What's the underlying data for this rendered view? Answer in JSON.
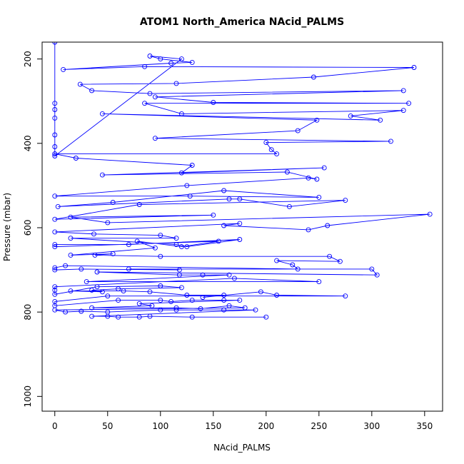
{
  "chart_data": {
    "type": "line",
    "title": "ATOM1 North_America NAcid_PALMS",
    "xlabel": "NAcid_PALMS",
    "ylabel": "Pressure (mbar)",
    "xlim": [
      -12,
      367
    ],
    "ylim": [
      1035,
      160
    ],
    "y_reversed": true,
    "x_ticks": [
      0,
      50,
      100,
      150,
      200,
      250,
      300,
      350
    ],
    "y_ticks": [
      200,
      400,
      600,
      800,
      1000
    ],
    "series_color": "#0000ff",
    "series": [
      {
        "points": [
          [
            0,
            160
          ],
          [
            0,
            305
          ],
          [
            0,
            320
          ],
          [
            0,
            340
          ],
          [
            0,
            380
          ],
          [
            0,
            408
          ],
          [
            0,
            425
          ],
          [
            0,
            430
          ],
          [
            120,
            200
          ],
          [
            90,
            193
          ],
          [
            100,
            200
          ],
          [
            130,
            208
          ],
          [
            110,
            210
          ],
          [
            8,
            225
          ],
          [
            85,
            218
          ],
          [
            340,
            220
          ],
          [
            245,
            243
          ],
          [
            115,
            258
          ],
          [
            24,
            260
          ],
          [
            35,
            275
          ],
          [
            90,
            282
          ],
          [
            330,
            275
          ],
          [
            95,
            290
          ],
          [
            150,
            303
          ],
          [
            335,
            305
          ],
          [
            85,
            305
          ],
          [
            120,
            330
          ],
          [
            330,
            322
          ],
          [
            280,
            335
          ],
          [
            308,
            345
          ],
          [
            45,
            330
          ],
          [
            248,
            345
          ],
          [
            230,
            370
          ],
          [
            95,
            388
          ],
          [
            318,
            395
          ],
          [
            200,
            398
          ],
          [
            205,
            415
          ],
          [
            210,
            425
          ],
          [
            0,
            425
          ],
          [
            20,
            435
          ],
          [
            130,
            452
          ],
          [
            120,
            470
          ],
          [
            255,
            458
          ],
          [
            45,
            475
          ],
          [
            220,
            468
          ],
          [
            248,
            485
          ],
          [
            240,
            482
          ],
          [
            125,
            500
          ],
          [
            0,
            525
          ],
          [
            128,
            525
          ],
          [
            250,
            528
          ],
          [
            160,
            512
          ],
          [
            55,
            540
          ],
          [
            3,
            550
          ],
          [
            165,
            532
          ],
          [
            175,
            532
          ],
          [
            222,
            550
          ],
          [
            275,
            535
          ],
          [
            80,
            545
          ],
          [
            0,
            580
          ],
          [
            150,
            570
          ],
          [
            15,
            575
          ],
          [
            50,
            588
          ],
          [
            355,
            568
          ],
          [
            258,
            595
          ],
          [
            240,
            605
          ],
          [
            160,
            595
          ],
          [
            175,
            590
          ],
          [
            0,
            610
          ],
          [
            37,
            615
          ],
          [
            100,
            618
          ],
          [
            115,
            625
          ],
          [
            15,
            625
          ],
          [
            115,
            640
          ],
          [
            125,
            645
          ],
          [
            175,
            628
          ],
          [
            70,
            640
          ],
          [
            0,
            640
          ],
          [
            0,
            645
          ],
          [
            155,
            632
          ],
          [
            120,
            645
          ],
          [
            78,
            632
          ],
          [
            95,
            648
          ],
          [
            15,
            665
          ],
          [
            55,
            662
          ],
          [
            38,
            665
          ],
          [
            100,
            668
          ],
          [
            260,
            668
          ],
          [
            270,
            680
          ],
          [
            210,
            678
          ],
          [
            225,
            688
          ],
          [
            230,
            698
          ],
          [
            10,
            690
          ],
          [
            0,
            695
          ],
          [
            0,
            700
          ],
          [
            25,
            698
          ],
          [
            118,
            700
          ],
          [
            70,
            698
          ],
          [
            300,
            698
          ],
          [
            305,
            712
          ],
          [
            40,
            705
          ],
          [
            118,
            712
          ],
          [
            140,
            712
          ],
          [
            165,
            712
          ],
          [
            30,
            728
          ],
          [
            250,
            728
          ],
          [
            170,
            720
          ],
          [
            0,
            740
          ],
          [
            0,
            748
          ],
          [
            0,
            758
          ],
          [
            40,
            740
          ],
          [
            100,
            738
          ],
          [
            120,
            742
          ],
          [
            60,
            745
          ],
          [
            35,
            748
          ],
          [
            45,
            752
          ],
          [
            15,
            750
          ],
          [
            65,
            750
          ],
          [
            90,
            752
          ],
          [
            125,
            760
          ],
          [
            160,
            760
          ],
          [
            140,
            765
          ],
          [
            195,
            752
          ],
          [
            210,
            760
          ],
          [
            275,
            762
          ],
          [
            50,
            762
          ],
          [
            0,
            775
          ],
          [
            0,
            785
          ],
          [
            60,
            772
          ],
          [
            100,
            772
          ],
          [
            110,
            775
          ],
          [
            130,
            772
          ],
          [
            160,
            772
          ],
          [
            175,
            772
          ],
          [
            80,
            780
          ],
          [
            92,
            785
          ],
          [
            35,
            790
          ],
          [
            115,
            790
          ],
          [
            138,
            792
          ],
          [
            165,
            785
          ],
          [
            180,
            790
          ],
          [
            0,
            795
          ],
          [
            10,
            800
          ],
          [
            25,
            798
          ],
          [
            50,
            800
          ],
          [
            100,
            795
          ],
          [
            115,
            795
          ],
          [
            160,
            795
          ],
          [
            190,
            795
          ],
          [
            35,
            810
          ],
          [
            50,
            810
          ],
          [
            60,
            812
          ],
          [
            80,
            812
          ],
          [
            90,
            810
          ],
          [
            130,
            812
          ],
          [
            200,
            812
          ]
        ]
      }
    ]
  }
}
